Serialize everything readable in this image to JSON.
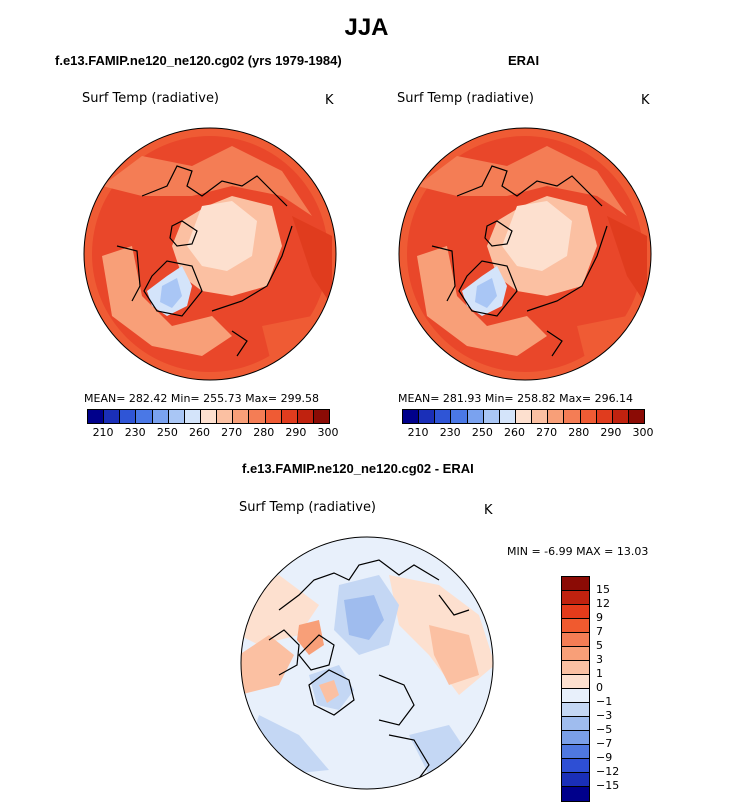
{
  "title": "JJA",
  "panels": {
    "model": {
      "title": "f.e13.FAMIP.ne120_ne120.cg02 (yrs 1979-1984)",
      "variable": "Surf Temp (radiative)",
      "unit": "K",
      "stats": "MEAN= 282.42   Min= 255.73   Max= 299.58"
    },
    "obs": {
      "title": "ERAI",
      "variable": "Surf Temp (radiative)",
      "unit": "K",
      "stats": "MEAN= 281.93   Min= 258.82   Max= 296.14"
    },
    "diff": {
      "title": "f.e13.FAMIP.ne120_ne120.cg02 - ERAI",
      "variable": "Surf Temp (radiative)",
      "unit": "K",
      "stats": "MIN =   -6.99 MAX =   13.03"
    }
  },
  "colorbar_abs": {
    "colors": [
      "#00008b",
      "#1a2fb8",
      "#2f55d6",
      "#4a78e6",
      "#7aa2ef",
      "#a9c6f5",
      "#d4e4fa",
      "#fde0cf",
      "#fbc0a2",
      "#f89f78",
      "#f47d55",
      "#ef5b34",
      "#e03c1e",
      "#c0220f",
      "#8b0b05"
    ],
    "labels": [
      "210",
      "230",
      "250",
      "260",
      "270",
      "280",
      "290",
      "300"
    ]
  },
  "colorbar_diff": {
    "colors": [
      "#8b0b05",
      "#c0220f",
      "#e43b1b",
      "#f05a2f",
      "#f47d55",
      "#f89f78",
      "#fbc0a2",
      "#fde0cf",
      "#e8f0fb",
      "#c4d7f4",
      "#9fbcee",
      "#7a9fe8",
      "#4f78e0",
      "#2e4fd4",
      "#1a2fb8",
      "#00008b"
    ],
    "labels": [
      "15",
      "12",
      "9",
      "7",
      "5",
      "3",
      "1",
      "0",
      "−1",
      "−3",
      "−5",
      "−7",
      "−9",
      "−12",
      "−15"
    ]
  }
}
